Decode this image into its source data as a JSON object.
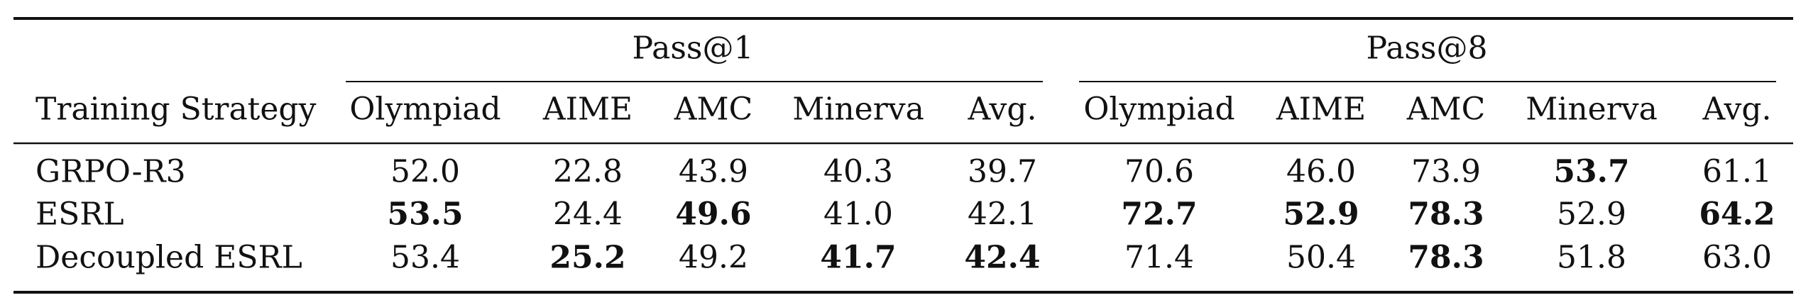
{
  "table": {
    "corner": "Training Strategy",
    "groups": [
      "Pass@1",
      "Pass@8"
    ],
    "columns": [
      "Olympiad",
      "AIME",
      "AMC",
      "Minerva",
      "Avg.",
      "Olympiad",
      "AIME",
      "AMC",
      "Minerva",
      "Avg."
    ],
    "rows": [
      {
        "label": "GRPO-R3",
        "values": [
          "52.0",
          "22.8",
          "43.9",
          "40.3",
          "39.7",
          "70.6",
          "46.0",
          "73.9",
          "53.7",
          "61.1"
        ],
        "bold": [
          false,
          false,
          false,
          false,
          false,
          false,
          false,
          false,
          true,
          false
        ]
      },
      {
        "label": "ESRL",
        "values": [
          "53.5",
          "24.4",
          "49.6",
          "41.0",
          "42.1",
          "72.7",
          "52.9",
          "78.3",
          "52.9",
          "64.2"
        ],
        "bold": [
          true,
          false,
          true,
          false,
          false,
          true,
          true,
          true,
          false,
          true
        ]
      },
      {
        "label": "Decoupled ESRL",
        "values": [
          "53.4",
          "25.2",
          "49.2",
          "41.7",
          "42.4",
          "71.4",
          "50.4",
          "78.3",
          "51.8",
          "63.0"
        ],
        "bold": [
          false,
          true,
          false,
          true,
          true,
          false,
          false,
          true,
          false,
          false
        ]
      }
    ]
  }
}
